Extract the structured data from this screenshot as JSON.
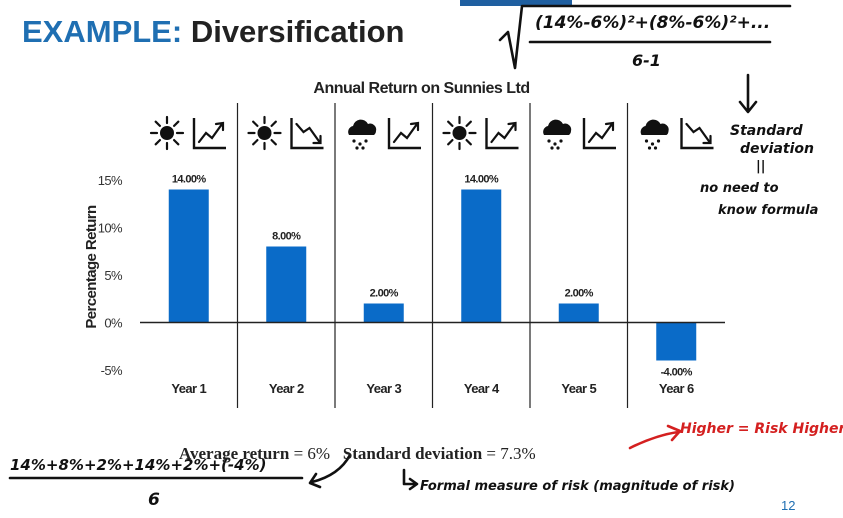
{
  "slide": {
    "title_prefix": "EXAMPLE:",
    "title_main": "Diversification",
    "page_number": "12"
  },
  "summary": {
    "avg_label": "Average return",
    "avg_value": "= 6%",
    "sd_label": "Standard deviation",
    "sd_value": "= 7.3%"
  },
  "annotations": {
    "formula_top": "(14%-6%)²+(8%-6%)²+...",
    "formula_denominator": "6-1",
    "note_line1": "Standard",
    "note_line2": "deviation",
    "note_line3": "||",
    "note_line4": "no need to",
    "note_line5": "know formula",
    "higher_risk": "Higher = Risk Higher",
    "avg_formula": "14%+8%+2%+14%+2%+(-4%)",
    "avg_denominator": "6",
    "risk_note": "Formal measure of risk (magnitude of risk)"
  },
  "colors": {
    "bar": "#0a6bc8",
    "accent": "#1f6fb2",
    "annotation_red": "#d42020"
  },
  "chart_data": {
    "type": "bar",
    "title": "Annual Return on Sunnies Ltd",
    "ylabel": "Percentage Return",
    "xlabel": "",
    "categories": [
      "Year 1",
      "Year 2",
      "Year 3",
      "Year 4",
      "Year 5",
      "Year 6"
    ],
    "values": [
      14.0,
      8.0,
      2.0,
      14.0,
      2.0,
      -4.0
    ],
    "data_labels": [
      "14.00%",
      "8.00%",
      "2.00%",
      "14.00%",
      "2.00%",
      "-4.00%"
    ],
    "ylim": [
      -5,
      15
    ],
    "yticks": [
      15,
      10,
      5,
      0,
      -5
    ],
    "ytick_labels": [
      "15%",
      "10%",
      "5%",
      "0%",
      "-5%"
    ],
    "icons": [
      [
        "sun-icon",
        "trend-up-icon"
      ],
      [
        "sun-icon",
        "trend-down-icon"
      ],
      [
        "rain-cloud-icon",
        "trend-up-icon"
      ],
      [
        "sun-icon",
        "trend-up-icon"
      ],
      [
        "rain-cloud-icon",
        "trend-up-icon"
      ],
      [
        "rain-cloud-icon",
        "trend-down-icon"
      ]
    ],
    "grid": false
  }
}
